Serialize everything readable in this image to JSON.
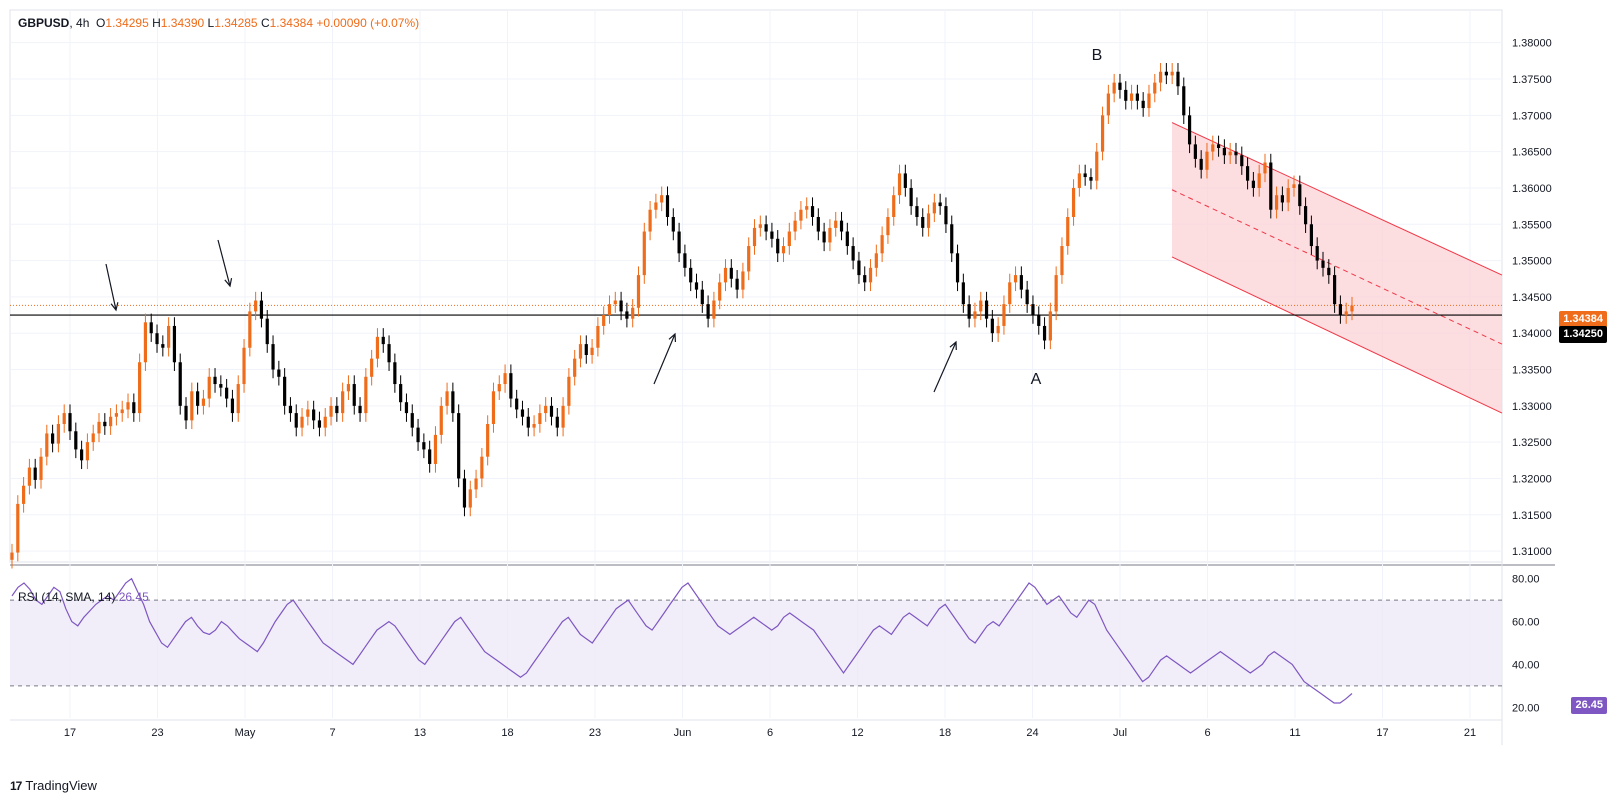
{
  "header": {
    "symbol": "GBPUSD",
    "interval": "4h",
    "o_label": "O",
    "open": "1.34295",
    "h_label": "H",
    "high": "1.34390",
    "l_label": "L",
    "low": "1.34285",
    "c_label": "C",
    "close": "1.34384",
    "change": "+0.00090 (+0.07%)"
  },
  "rsi_header": {
    "label": "RSI (14, SMA, 14)",
    "value": "26.45"
  },
  "price_tags": {
    "last": "1.34384",
    "level": "1.34250",
    "rsi": "26.45"
  },
  "brand": {
    "logo_text": "TradingView",
    "logo_mark": "17"
  },
  "colors": {
    "up": "#ef6c1a",
    "down": "#000000",
    "rsi": "#7e57c2",
    "channel": "#f23645",
    "channel_fill": "#fbd4d8",
    "rsi_band": "#ede7f6"
  },
  "chart_data": [
    {
      "type": "candlestick",
      "title": "GBPUSD 4h",
      "y_ticks": [
        "1.38000",
        "1.37500",
        "1.37000",
        "1.36500",
        "1.36000",
        "1.35500",
        "1.35000",
        "1.34500",
        "1.34000",
        "1.33500",
        "1.33000",
        "1.32500",
        "1.32000",
        "1.31500",
        "1.31000"
      ],
      "ylim": [
        1.3085,
        1.3845
      ],
      "x_ticks": [
        "17",
        "23",
        "May",
        "7",
        "13",
        "18",
        "23",
        "Jun",
        "6",
        "12",
        "18",
        "24",
        "Jul",
        "6",
        "11",
        "17",
        "21"
      ],
      "support_level": 1.3425,
      "last_price": 1.34384,
      "series_close": [
        1.3098,
        1.3165,
        1.319,
        1.3215,
        1.3198,
        1.323,
        1.3262,
        1.3248,
        1.3275,
        1.329,
        1.3265,
        1.324,
        1.3225,
        1.325,
        1.3262,
        1.3278,
        1.3272,
        1.3285,
        1.329,
        1.3295,
        1.3305,
        1.329,
        1.336,
        1.3415,
        1.34,
        1.3385,
        1.338,
        1.341,
        1.336,
        1.33,
        1.328,
        1.332,
        1.33,
        1.331,
        1.334,
        1.333,
        1.3325,
        1.331,
        1.329,
        1.333,
        1.338,
        1.343,
        1.3445,
        1.342,
        1.3385,
        1.335,
        1.334,
        1.33,
        1.329,
        1.327,
        1.3285,
        1.3295,
        1.328,
        1.327,
        1.3285,
        1.33,
        1.329,
        1.332,
        1.333,
        1.33,
        1.329,
        1.334,
        1.3365,
        1.3395,
        1.3385,
        1.336,
        1.333,
        1.3305,
        1.329,
        1.327,
        1.325,
        1.324,
        1.322,
        1.326,
        1.33,
        1.332,
        1.329,
        1.32,
        1.316,
        1.3185,
        1.32,
        1.323,
        1.3275,
        1.332,
        1.333,
        1.3345,
        1.331,
        1.3295,
        1.3285,
        1.327,
        1.3275,
        1.329,
        1.33,
        1.3285,
        1.327,
        1.33,
        1.334,
        1.3365,
        1.3385,
        1.337,
        1.338,
        1.341,
        1.3425,
        1.344,
        1.3445,
        1.343,
        1.342,
        1.3435,
        1.348,
        1.354,
        1.357,
        1.358,
        1.359,
        1.356,
        1.354,
        1.351,
        1.349,
        1.347,
        1.346,
        1.344,
        1.342,
        1.3445,
        1.347,
        1.349,
        1.3475,
        1.346,
        1.3485,
        1.352,
        1.3545,
        1.355,
        1.354,
        1.353,
        1.351,
        1.352,
        1.354,
        1.3555,
        1.357,
        1.3575,
        1.356,
        1.354,
        1.3525,
        1.3545,
        1.3555,
        1.354,
        1.352,
        1.35,
        1.348,
        1.347,
        1.349,
        1.351,
        1.3535,
        1.356,
        1.359,
        1.362,
        1.36,
        1.3575,
        1.356,
        1.3545,
        1.3565,
        1.358,
        1.3575,
        1.355,
        1.351,
        1.347,
        1.344,
        1.342,
        1.343,
        1.3445,
        1.342,
        1.34,
        1.341,
        1.344,
        1.347,
        1.348,
        1.346,
        1.344,
        1.3425,
        1.341,
        1.339,
        1.343,
        1.348,
        1.352,
        1.356,
        1.36,
        1.362,
        1.3615,
        1.361,
        1.365,
        1.37,
        1.373,
        1.3745,
        1.3735,
        1.372,
        1.373,
        1.372,
        1.371,
        1.373,
        1.3745,
        1.376,
        1.3755,
        1.376,
        1.374,
        1.37,
        1.366,
        1.364,
        1.3625,
        1.365,
        1.366,
        1.3655,
        1.3645,
        1.365,
        1.3645,
        1.363,
        1.361,
        1.36,
        1.362,
        1.3635,
        1.357,
        1.359,
        1.358,
        1.36,
        1.3605,
        1.3575,
        1.355,
        1.352,
        1.35,
        1.349,
        1.348,
        1.344,
        1.3425,
        1.343,
        1.3438
      ],
      "channel_upper": [
        [
          1.369,
          "Jul 2"
        ],
        [
          1.348,
          "end"
        ]
      ],
      "channel_lower": [
        [
          1.3505,
          "Jul 2"
        ],
        [
          1.329,
          "end"
        ]
      ],
      "annotations": [
        "B",
        "A"
      ]
    },
    {
      "type": "line",
      "title": "RSI (14, SMA, 14)",
      "y_ticks": [
        "80.00",
        "60.00",
        "40.00",
        "20.00"
      ],
      "ylim": [
        15,
        85
      ],
      "bands": [
        30,
        70
      ],
      "last_value": 26.45,
      "values": [
        72,
        76,
        78,
        75,
        70,
        68,
        72,
        76,
        74,
        66,
        60,
        58,
        62,
        65,
        68,
        70,
        72,
        70,
        74,
        78,
        80,
        74,
        68,
        60,
        55,
        50,
        48,
        52,
        56,
        60,
        62,
        58,
        55,
        54,
        56,
        60,
        58,
        55,
        52,
        50,
        48,
        46,
        50,
        55,
        60,
        64,
        68,
        70,
        66,
        62,
        58,
        54,
        50,
        48,
        46,
        44,
        42,
        40,
        44,
        48,
        52,
        56,
        58,
        60,
        58,
        54,
        50,
        46,
        42,
        40,
        44,
        48,
        52,
        56,
        60,
        62,
        58,
        54,
        50,
        46,
        44,
        42,
        40,
        38,
        36,
        34,
        36,
        40,
        44,
        48,
        52,
        56,
        60,
        62,
        58,
        54,
        52,
        50,
        54,
        58,
        62,
        66,
        68,
        70,
        66,
        62,
        58,
        56,
        60,
        64,
        68,
        72,
        76,
        78,
        74,
        70,
        66,
        62,
        58,
        56,
        54,
        56,
        58,
        60,
        62,
        60,
        58,
        56,
        58,
        62,
        64,
        62,
        60,
        58,
        56,
        52,
        48,
        44,
        40,
        36,
        40,
        44,
        48,
        52,
        56,
        58,
        56,
        54,
        58,
        62,
        64,
        62,
        60,
        58,
        62,
        66,
        68,
        64,
        60,
        56,
        52,
        50,
        54,
        58,
        60,
        58,
        62,
        66,
        70,
        74,
        78,
        76,
        72,
        68,
        70,
        72,
        68,
        64,
        62,
        66,
        70,
        68,
        62,
        56,
        52,
        48,
        44,
        40,
        36,
        32,
        34,
        38,
        42,
        44,
        42,
        40,
        38,
        36,
        38,
        40,
        42,
        44,
        46,
        44,
        42,
        40,
        38,
        36,
        38,
        40,
        44,
        46,
        44,
        42,
        40,
        36,
        32,
        30,
        28,
        26,
        24,
        22,
        22,
        24,
        26.45
      ]
    }
  ]
}
